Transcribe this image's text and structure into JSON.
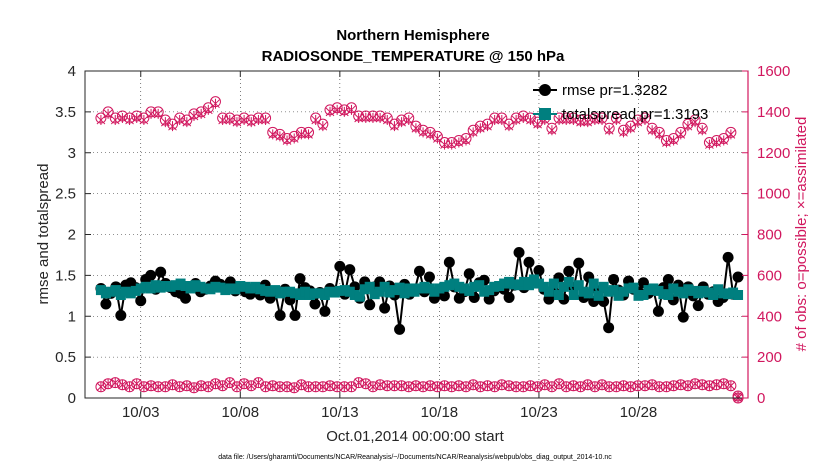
{
  "chart_data": {
    "type": "line",
    "title": [
      "Northern Hemisphere",
      "RADIOSONDE_TEMPERATURE @ 150 hPa"
    ],
    "xlabel": "Oct.01,2014 00:00:00 start",
    "ylabel": "rmse and totalspread",
    "y2label": "# of obs: o=possible; ×=assimilated",
    "footnote": "data file: /Users/gharamti/Documents/NCAR/Reanalysis/~/Documents/NCAR/Reanalysis/webpub/obs_diag_output_2014-10.nc",
    "xlim": [
      0.2,
      33.5
    ],
    "ylim": [
      0,
      4
    ],
    "y2lim": [
      0,
      1600
    ],
    "xticks": [
      3,
      8,
      13,
      18,
      23,
      28
    ],
    "xticklabels": [
      "10/03",
      "10/08",
      "10/13",
      "10/18",
      "10/23",
      "10/28"
    ],
    "yticks": [
      0,
      0.5,
      1,
      1.5,
      2,
      2.5,
      3,
      3.5,
      4
    ],
    "yticklabels": [
      "0",
      "0.5",
      "1",
      "1.5",
      "2",
      "2.5",
      "3",
      "3.5",
      "4"
    ],
    "y2ticks": [
      0,
      200,
      400,
      600,
      800,
      1000,
      1200,
      1400,
      1600
    ],
    "y2ticklabels": [
      "0",
      "200",
      "400",
      "600",
      "800",
      "1000",
      "1200",
      "1400",
      "1600"
    ],
    "grid": true,
    "colors": {
      "rmse": "#000000",
      "spread": "#007f7f",
      "obs": "#d1175e"
    },
    "legend": {
      "location": "top-right",
      "entries": [
        "rmse pr=1.3282",
        "totalspread pr=1.3193"
      ]
    },
    "series": [
      {
        "name": "rmse",
        "values": [
          1.34,
          1.15,
          1.28,
          1.36,
          1.01,
          1.38,
          1.41,
          1.35,
          1.19,
          1.45,
          1.5,
          1.33,
          1.54,
          1.4,
          1.35,
          1.3,
          1.28,
          1.22,
          1.35,
          1.4,
          1.3,
          1.33,
          1.37,
          1.43,
          1.39,
          1.34,
          1.42,
          1.31,
          1.36,
          1.3,
          1.27,
          1.33,
          1.26,
          1.38,
          1.22,
          1.3,
          1.01,
          1.33,
          1.2,
          1.01,
          1.46,
          1.35,
          1.31,
          1.15,
          1.29,
          1.06,
          1.34,
          1.3,
          1.61,
          1.27,
          1.57,
          1.36,
          1.22,
          1.42,
          1.14,
          1.36,
          1.42,
          1.1,
          1.37,
          1.26,
          0.84,
          1.39,
          1.27,
          1.31,
          1.55,
          1.3,
          1.48,
          1.22,
          1.33,
          1.25,
          1.66,
          1.36,
          1.22,
          1.3,
          1.52,
          1.23,
          1.41,
          1.44,
          1.21,
          1.31,
          1.36,
          1.33,
          1.23,
          1.38,
          1.78,
          1.35,
          1.66,
          1.44,
          1.56,
          1.33,
          1.21,
          1.3,
          1.47,
          1.21,
          1.55,
          1.35,
          1.65,
          1.23,
          1.48,
          1.18,
          1.31,
          1.18,
          0.86,
          1.45,
          1.32,
          1.26,
          1.43,
          1.33,
          1.3,
          1.41,
          1.28,
          1.32,
          1.06,
          1.35,
          1.45,
          1.2,
          1.38,
          0.99,
          1.36,
          1.25,
          1.13,
          1.36,
          1.27,
          1.3,
          1.18,
          1.23,
          1.72,
          1.27,
          1.48
        ]
      },
      {
        "name": "totalspread",
        "values": [
          1.32,
          1.28,
          1.3,
          1.32,
          1.26,
          1.3,
          1.28,
          1.31,
          1.34,
          1.36,
          1.34,
          1.38,
          1.35,
          1.37,
          1.36,
          1.38,
          1.4,
          1.37,
          1.34,
          1.38,
          1.36,
          1.34,
          1.33,
          1.36,
          1.35,
          1.32,
          1.34,
          1.33,
          1.37,
          1.36,
          1.34,
          1.36,
          1.33,
          1.31,
          1.3,
          1.32,
          1.28,
          1.3,
          1.3,
          1.28,
          1.26,
          1.3,
          1.26,
          1.28,
          1.28,
          1.26,
          1.3,
          1.29,
          1.31,
          1.32,
          1.3,
          1.26,
          1.24,
          1.33,
          1.36,
          1.27,
          1.3,
          1.36,
          1.29,
          1.32,
          1.35,
          1.28,
          1.34,
          1.3,
          1.34,
          1.36,
          1.34,
          1.3,
          1.34,
          1.36,
          1.38,
          1.4,
          1.36,
          1.34,
          1.31,
          1.36,
          1.38,
          1.3,
          1.32,
          1.36,
          1.37,
          1.4,
          1.42,
          1.39,
          1.38,
          1.42,
          1.38,
          1.45,
          1.4,
          1.36,
          1.3,
          1.4,
          1.26,
          1.36,
          1.42,
          1.26,
          1.38,
          1.3,
          1.28,
          1.4,
          1.25,
          1.36,
          1.3,
          1.32,
          1.25,
          1.3,
          1.34,
          1.35,
          1.25,
          1.26,
          1.32,
          1.34,
          1.31,
          1.27,
          1.26,
          1.34,
          1.3,
          1.28,
          1.33,
          1.31,
          1.28,
          1.31,
          1.29,
          1.26,
          1.33,
          1.28,
          1.27,
          1.29,
          1.26
        ]
      },
      {
        "name": "obs_possible",
        "axis": "right",
        "values": [
          1370,
          1400,
          1370,
          1380,
          1370,
          1380,
          1370,
          1400,
          1400,
          1360,
          1340,
          1370,
          1360,
          1390,
          1400,
          1420,
          1450,
          1370,
          1370,
          1360,
          1370,
          1360,
          1370,
          1370,
          1300,
          1290,
          1270,
          1280,
          1300,
          1300,
          1370,
          1340,
          1410,
          1420,
          1410,
          1420,
          1380,
          1380,
          1380,
          1380,
          1370,
          1340,
          1360,
          1370,
          1330,
          1310,
          1300,
          1280,
          1250,
          1250,
          1260,
          1270,
          1310,
          1330,
          1340,
          1370,
          1370,
          1340,
          1370,
          1380,
          1370,
          1350,
          1370,
          1320,
          1370,
          1370,
          1370,
          1360,
          1360,
          1370,
          1370,
          1320,
          1370,
          1310,
          1330,
          1360,
          1370,
          1320,
          1300,
          1260,
          1270,
          1300,
          1340,
          1360,
          1320,
          1250,
          1260,
          1270,
          1300,
          0
        ]
      },
      {
        "name": "obs_assimilated",
        "axis": "right",
        "values": [
          1360,
          1390,
          1360,
          1370,
          1360,
          1370,
          1360,
          1390,
          1390,
          1350,
          1330,
          1360,
          1350,
          1380,
          1390,
          1410,
          1440,
          1360,
          1360,
          1350,
          1360,
          1350,
          1360,
          1360,
          1290,
          1280,
          1260,
          1270,
          1290,
          1290,
          1360,
          1330,
          1400,
          1410,
          1400,
          1410,
          1370,
          1370,
          1370,
          1370,
          1360,
          1330,
          1350,
          1360,
          1320,
          1300,
          1290,
          1270,
          1240,
          1240,
          1250,
          1260,
          1300,
          1320,
          1330,
          1360,
          1360,
          1330,
          1360,
          1370,
          1360,
          1340,
          1360,
          1310,
          1360,
          1360,
          1360,
          1350,
          1350,
          1360,
          1360,
          1310,
          1360,
          1300,
          1320,
          1350,
          1360,
          1310,
          1290,
          1250,
          1260,
          1290,
          1330,
          1350,
          1310,
          1240,
          1250,
          1260,
          1290,
          0
        ]
      },
      {
        "name": "obs_possible_lower",
        "axis": "right",
        "values": [
          55,
          70,
          75,
          65,
          55,
          70,
          55,
          60,
          55,
          55,
          65,
          55,
          60,
          50,
          60,
          55,
          70,
          60,
          75,
          55,
          70,
          60,
          75,
          55,
          60,
          55,
          55,
          50,
          65,
          55,
          55,
          55,
          60,
          55,
          55,
          55,
          75,
          70,
          55,
          65,
          60,
          60,
          60,
          55,
          60,
          55,
          60,
          55,
          60,
          55,
          60,
          55,
          65,
          55,
          60,
          55,
          65,
          60,
          55,
          55,
          60,
          55,
          65,
          55,
          70,
          55,
          60,
          55,
          65,
          55,
          65,
          55,
          55,
          60,
          55,
          60,
          60,
          65,
          55,
          55,
          60,
          65,
          60,
          70,
          65,
          60,
          65,
          70,
          60,
          10
        ]
      }
    ]
  }
}
